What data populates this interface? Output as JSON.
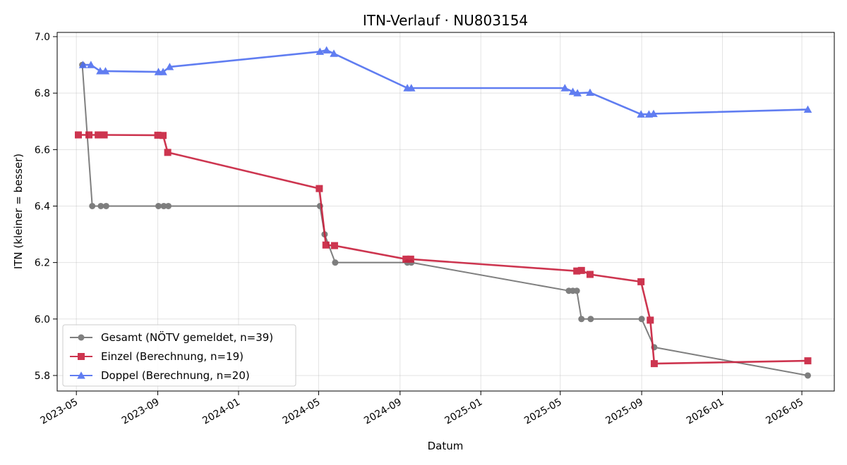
{
  "chart_data": {
    "type": "line",
    "title": "ITN-Verlauf · NU803154",
    "xlabel": "Datum",
    "ylabel": "ITN  (kleiner = besser)",
    "xlim": [
      "2023-04-02",
      "2026-06-19"
    ],
    "ylim": [
      5.745,
      7.015
    ],
    "x_ticks": [
      "2023-05-01",
      "2023-09-01",
      "2024-01-01",
      "2024-05-01",
      "2024-09-01",
      "2025-01-01",
      "2025-05-01",
      "2025-09-01",
      "2026-01-01",
      "2026-05-01"
    ],
    "x_tick_labels": [
      "2023-05",
      "2023-09",
      "2024-01",
      "2024-05",
      "2024-09",
      "2025-01",
      "2025-05",
      "2025-09",
      "2026-01",
      "2026-05"
    ],
    "y_ticks": [
      5.8,
      6.0,
      6.2,
      6.4,
      6.6,
      6.8,
      7.0
    ],
    "y_tick_labels": [
      "5.8",
      "6.0",
      "6.2",
      "6.4",
      "6.6",
      "6.8",
      "7.0"
    ],
    "grid": true,
    "legend_position": "lower-left",
    "series": [
      {
        "name": "Gesamt (NÖTV gemeldet, n=39)",
        "color": "#555555",
        "marker": "circle",
        "points": [
          {
            "x": "2023-05-10",
            "y": 6.9
          },
          {
            "x": "2023-05-25",
            "y": 6.4
          },
          {
            "x": "2023-06-07",
            "y": 6.4
          },
          {
            "x": "2023-06-15",
            "y": 6.4
          },
          {
            "x": "2023-09-02",
            "y": 6.4
          },
          {
            "x": "2023-09-10",
            "y": 6.4
          },
          {
            "x": "2023-09-17",
            "y": 6.4
          },
          {
            "x": "2024-05-03",
            "y": 6.4
          },
          {
            "x": "2024-05-10",
            "y": 6.3
          },
          {
            "x": "2024-05-26",
            "y": 6.2
          },
          {
            "x": "2024-09-12",
            "y": 6.2
          },
          {
            "x": "2024-09-18",
            "y": 6.2
          },
          {
            "x": "2025-05-14",
            "y": 6.1
          },
          {
            "x": "2025-05-20",
            "y": 6.1
          },
          {
            "x": "2025-05-26",
            "y": 6.1
          },
          {
            "x": "2025-06-02",
            "y": 6.0
          },
          {
            "x": "2025-06-16",
            "y": 6.0
          },
          {
            "x": "2025-09-01",
            "y": 6.0
          },
          {
            "x": "2025-09-20",
            "y": 5.9
          },
          {
            "x": "2026-05-10",
            "y": 5.8
          }
        ]
      },
      {
        "name": "Einzel (Berechnung, n=19)",
        "color": "#c8203d",
        "marker": "square",
        "points": [
          {
            "x": "2023-05-04",
            "y": 6.652
          },
          {
            "x": "2023-05-20",
            "y": 6.652
          },
          {
            "x": "2023-06-03",
            "y": 6.652
          },
          {
            "x": "2023-06-12",
            "y": 6.652
          },
          {
            "x": "2023-09-01",
            "y": 6.651
          },
          {
            "x": "2023-09-09",
            "y": 6.65
          },
          {
            "x": "2023-09-16",
            "y": 6.59
          },
          {
            "x": "2024-05-02",
            "y": 6.462
          },
          {
            "x": "2024-05-12",
            "y": 6.262
          },
          {
            "x": "2024-05-25",
            "y": 6.26
          },
          {
            "x": "2024-09-10",
            "y": 6.212
          },
          {
            "x": "2024-09-17",
            "y": 6.212
          },
          {
            "x": "2025-05-26",
            "y": 6.17
          },
          {
            "x": "2025-06-02",
            "y": 6.172
          },
          {
            "x": "2025-06-15",
            "y": 6.158
          },
          {
            "x": "2025-08-31",
            "y": 6.132
          },
          {
            "x": "2025-09-14",
            "y": 5.996
          },
          {
            "x": "2025-09-20",
            "y": 5.842
          },
          {
            "x": "2026-05-10",
            "y": 5.852
          }
        ]
      },
      {
        "name": "Doppel (Berechnung, n=20)",
        "color": "#4f6ff0",
        "marker": "triangle",
        "points": [
          {
            "x": "2023-05-11",
            "y": 6.9
          },
          {
            "x": "2023-05-23",
            "y": 6.9
          },
          {
            "x": "2023-06-06",
            "y": 6.878
          },
          {
            "x": "2023-06-14",
            "y": 6.878
          },
          {
            "x": "2023-09-02",
            "y": 6.875
          },
          {
            "x": "2023-09-09",
            "y": 6.875
          },
          {
            "x": "2023-09-19",
            "y": 6.893
          },
          {
            "x": "2024-05-03",
            "y": 6.947
          },
          {
            "x": "2024-05-13",
            "y": 6.952
          },
          {
            "x": "2024-05-24",
            "y": 6.94
          },
          {
            "x": "2024-09-12",
            "y": 6.818
          },
          {
            "x": "2024-09-18",
            "y": 6.818
          },
          {
            "x": "2025-05-08",
            "y": 6.818
          },
          {
            "x": "2025-05-20",
            "y": 6.805
          },
          {
            "x": "2025-05-27",
            "y": 6.8
          },
          {
            "x": "2025-06-15",
            "y": 6.802
          },
          {
            "x": "2025-08-31",
            "y": 6.725
          },
          {
            "x": "2025-09-12",
            "y": 6.725
          },
          {
            "x": "2025-09-19",
            "y": 6.727
          },
          {
            "x": "2026-05-10",
            "y": 6.742
          }
        ]
      }
    ]
  }
}
